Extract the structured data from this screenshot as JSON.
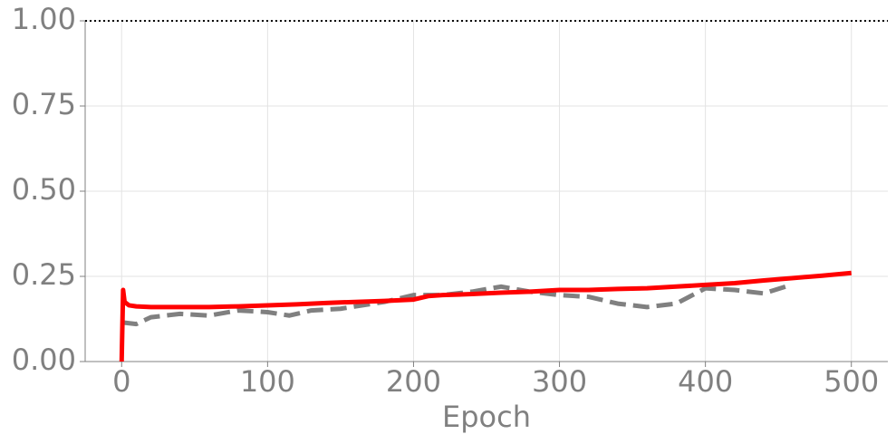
{
  "chart_data": {
    "type": "line",
    "xlabel": "Epoch",
    "xlim": [
      -25,
      525
    ],
    "xticks": [
      0,
      100,
      200,
      300,
      400,
      500
    ],
    "ylim": [
      0,
      1
    ],
    "yticks": [
      {
        "value": 0,
        "label": "0.00"
      },
      {
        "value": 0.25,
        "label": "0.25"
      },
      {
        "value": 0.5,
        "label": "0.50"
      },
      {
        "value": 0.75,
        "label": "0.75"
      },
      {
        "value": 1,
        "label": "1.00"
      }
    ],
    "grid": true,
    "hline": 1,
    "series": [
      {
        "color": "#808080",
        "style": "dashed",
        "x": [
          0,
          10,
          20,
          40,
          60,
          80,
          100,
          115,
          130,
          150,
          180,
          200,
          220,
          240,
          260,
          280,
          300,
          320,
          340,
          360,
          380,
          400,
          420,
          440,
          455
        ],
        "values": [
          0.115,
          0.11,
          0.13,
          0.14,
          0.135,
          0.15,
          0.145,
          0.135,
          0.15,
          0.155,
          0.175,
          0.195,
          0.195,
          0.205,
          0.22,
          0.205,
          0.195,
          0.19,
          0.17,
          0.16,
          0.17,
          0.215,
          0.21,
          0.2,
          0.22
        ]
      },
      {
        "color": "#ff0000",
        "style": "solid",
        "x": [
          0,
          1,
          2,
          5,
          10,
          20,
          40,
          60,
          80,
          100,
          120,
          140,
          160,
          180,
          200,
          210,
          220,
          240,
          260,
          280,
          300,
          320,
          340,
          360,
          380,
          400,
          420,
          440,
          460,
          480,
          500
        ],
        "values": [
          0,
          0.21,
          0.175,
          0.165,
          0.162,
          0.16,
          0.16,
          0.16,
          0.162,
          0.165,
          0.168,
          0.172,
          0.175,
          0.178,
          0.182,
          0.192,
          0.195,
          0.198,
          0.202,
          0.205,
          0.21,
          0.21,
          0.213,
          0.215,
          0.22,
          0.225,
          0.23,
          0.238,
          0.245,
          0.252,
          0.26
        ]
      }
    ]
  }
}
